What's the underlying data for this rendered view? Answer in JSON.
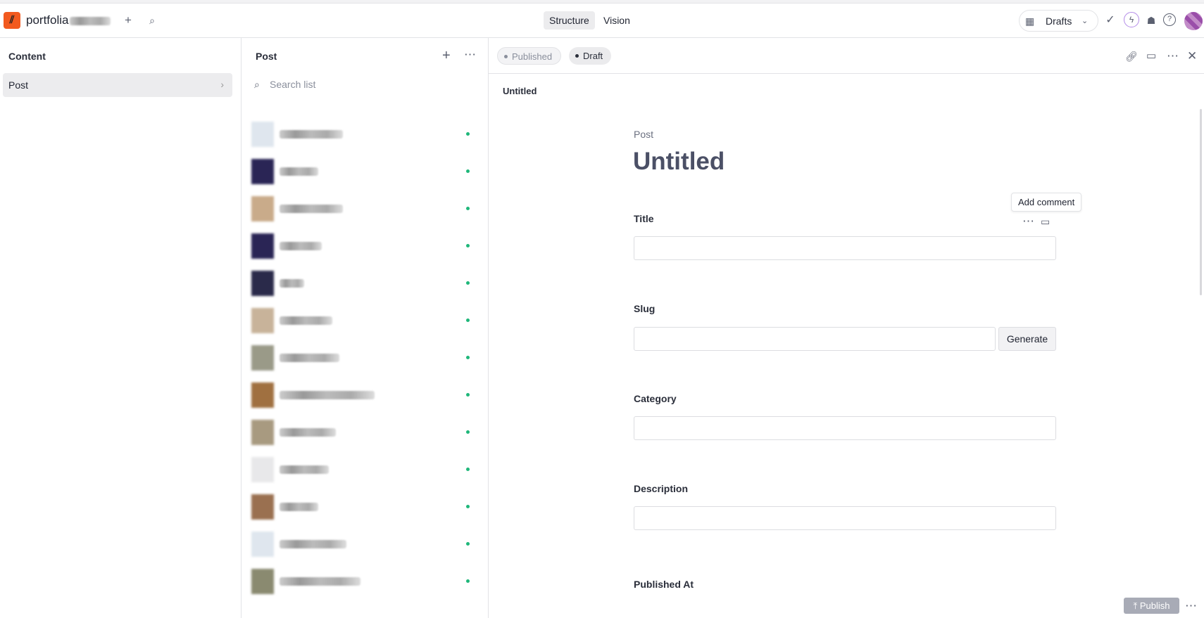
{
  "topbar": {
    "project": "portfolia",
    "tabs": [
      "Structure",
      "Vision"
    ],
    "active_tab": "Structure",
    "release": "Drafts"
  },
  "content_pane": {
    "title": "Content",
    "items": [
      {
        "label": "Post"
      }
    ]
  },
  "list_pane": {
    "title": "Post",
    "search_placeholder": "Search list",
    "items_count": 13,
    "status_color": "#1fb77a"
  },
  "document": {
    "versions": [
      "Published",
      "Draft"
    ],
    "active_version": "Draft",
    "breadcrumb": "Untitled",
    "type": "Post",
    "title": "Untitled",
    "fields": {
      "title": "Title",
      "slug": "Slug",
      "generate": "Generate",
      "category": "Category",
      "description": "Description",
      "published_at": "Published At"
    },
    "tooltip": "Add comment",
    "publish": "Publish"
  },
  "colors": {
    "brand": "#f25a1f",
    "accent": "#1fb77a"
  }
}
